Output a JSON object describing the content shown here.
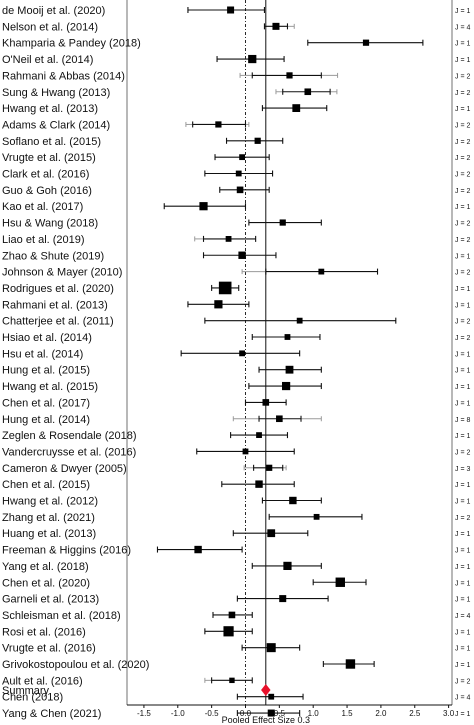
{
  "chart_data": {
    "type": "forest",
    "xlabel": "Pooled Effect Size 0.3",
    "xlim": [
      -1.75,
      3.05
    ],
    "xticks": [
      "-1.5",
      "-1.0",
      "-0.5",
      "0.0",
      "0.5",
      "1.0",
      "1.5",
      "2.0",
      "2.5",
      "3.0"
    ],
    "xtick_values": [
      -1.5,
      -1.0,
      -0.5,
      0.0,
      0.5,
      1.0,
      1.5,
      2.0,
      2.5,
      3.0
    ],
    "pooled_effect": 0.3,
    "null_line": 0.0,
    "summary": {
      "label": "Summary",
      "estimate": 0.3,
      "lower": 0.23,
      "upper": 0.37,
      "color": "#e8102a"
    },
    "studies": [
      {
        "label": "de Mooij et al. (2020)",
        "estimate": -0.22,
        "lower": -0.85,
        "upper": 0.28,
        "outer_lower": null,
        "outer_upper": null,
        "size": 1,
        "j": "J = 1"
      },
      {
        "label": "Nelson et al. (2014)",
        "estimate": 0.45,
        "lower": 0.28,
        "upper": 0.62,
        "outer_lower": null,
        "outer_upper": 0.72,
        "size": 1,
        "j": "J = 4"
      },
      {
        "label": "Khamparia & Pandey (2018)",
        "estimate": 1.78,
        "lower": 0.92,
        "upper": 2.62,
        "outer_lower": null,
        "outer_upper": null,
        "size": 0.8,
        "j": "J = 1"
      },
      {
        "label": "O'Neil et al. (2014)",
        "estimate": 0.1,
        "lower": -0.42,
        "upper": 0.57,
        "outer_lower": null,
        "outer_upper": null,
        "size": 1.3,
        "j": "J = 1"
      },
      {
        "label": "Rahmani & Abbas (2014)",
        "estimate": 0.65,
        "lower": 0.1,
        "upper": 1.12,
        "outer_lower": -0.08,
        "outer_upper": 1.36,
        "size": 0.8,
        "j": "J = 2"
      },
      {
        "label": "Sung & Hwang (2013)",
        "estimate": 0.92,
        "lower": 0.55,
        "upper": 1.25,
        "outer_lower": 0.45,
        "outer_upper": 1.35,
        "size": 0.9,
        "j": "J = 2"
      },
      {
        "label": "Hwang et al. (2013)",
        "estimate": 0.75,
        "lower": 0.25,
        "upper": 1.2,
        "outer_lower": null,
        "outer_upper": null,
        "size": 1.2,
        "j": "J = 1"
      },
      {
        "label": "Adams & Clark (2014)",
        "estimate": -0.4,
        "lower": -0.78,
        "upper": 0.0,
        "outer_lower": -0.88,
        "outer_upper": 0.05,
        "size": 0.8,
        "j": "J = 2"
      },
      {
        "label": "Soflano et al. (2015)",
        "estimate": 0.18,
        "lower": -0.28,
        "upper": 0.55,
        "outer_lower": null,
        "outer_upper": null,
        "size": 0.8,
        "j": "J = 2"
      },
      {
        "label": "Vrugte et al. (2015)",
        "estimate": -0.05,
        "lower": -0.45,
        "upper": 0.35,
        "outer_lower": null,
        "outer_upper": null,
        "size": 0.7,
        "j": "J = 2"
      },
      {
        "label": "Clark et al. (2016)",
        "estimate": -0.1,
        "lower": -0.6,
        "upper": 0.4,
        "outer_lower": null,
        "outer_upper": null,
        "size": 0.7,
        "j": "J = 2"
      },
      {
        "label": "Guo & Goh (2016)",
        "estimate": -0.08,
        "lower": -0.38,
        "upper": 0.35,
        "outer_lower": null,
        "outer_upper": null,
        "size": 0.9,
        "j": "J = 2"
      },
      {
        "label": "Kao et al. (2017)",
        "estimate": -0.62,
        "lower": -1.2,
        "upper": 0.0,
        "outer_lower": null,
        "outer_upper": null,
        "size": 1.3,
        "j": "J = 1"
      },
      {
        "label": "Hsu & Wang (2018)",
        "estimate": 0.55,
        "lower": 0.05,
        "upper": 1.12,
        "outer_lower": null,
        "outer_upper": null,
        "size": 0.8,
        "j": "J = 2"
      },
      {
        "label": "Liao et al. (2019)",
        "estimate": -0.25,
        "lower": -0.62,
        "upper": 0.15,
        "outer_lower": -0.75,
        "outer_upper": null,
        "size": 0.7,
        "j": "J = 2"
      },
      {
        "label": "Zhao & Shute (2019)",
        "estimate": -0.05,
        "lower": -0.62,
        "upper": 0.45,
        "outer_lower": null,
        "outer_upper": null,
        "size": 1.1,
        "j": "J = 1"
      },
      {
        "label": "Johnson & Mayer (2010)",
        "estimate": 1.12,
        "lower": 0.3,
        "upper": 1.95,
        "outer_lower": -0.05,
        "outer_upper": null,
        "size": 0.7,
        "j": "J = 2"
      },
      {
        "label": "Rodrigues et al. (2020)",
        "estimate": -0.3,
        "lower": -0.5,
        "upper": -0.1,
        "outer_lower": null,
        "outer_upper": null,
        "size": 2.4,
        "j": "J = 1"
      },
      {
        "label": "Rahmani et al. (2013)",
        "estimate": -0.4,
        "lower": -0.85,
        "upper": 0.05,
        "outer_lower": null,
        "outer_upper": null,
        "size": 1.3,
        "j": "J = 1"
      },
      {
        "label": "Chatterjee et al. (2011)",
        "estimate": 0.8,
        "lower": -0.6,
        "upper": 2.22,
        "outer_lower": null,
        "outer_upper": null,
        "size": 0.7,
        "j": "J = 2"
      },
      {
        "label": "Hsiao et al. (2014)",
        "estimate": 0.62,
        "lower": 0.1,
        "upper": 1.1,
        "outer_lower": null,
        "outer_upper": null,
        "size": 0.7,
        "j": "J = 2"
      },
      {
        "label": "Hsu et al. (2014)",
        "estimate": -0.05,
        "lower": -0.95,
        "upper": 0.8,
        "outer_lower": null,
        "outer_upper": null,
        "size": 0.7,
        "j": "J = 1"
      },
      {
        "label": "Hung et al. (2015)",
        "estimate": 0.65,
        "lower": 0.2,
        "upper": 1.12,
        "outer_lower": null,
        "outer_upper": null,
        "size": 1.2,
        "j": "J = 1"
      },
      {
        "label": "Hwang et al. (2015)",
        "estimate": 0.6,
        "lower": 0.05,
        "upper": 1.12,
        "outer_lower": null,
        "outer_upper": null,
        "size": 1.3,
        "j": "J = 1"
      },
      {
        "label": "Chen et al. (2017)",
        "estimate": 0.3,
        "lower": 0.0,
        "upper": 0.6,
        "outer_lower": null,
        "outer_upper": null,
        "size": 0.9,
        "j": "J = 1"
      },
      {
        "label": "Hung et al. (2014)",
        "estimate": 0.5,
        "lower": 0.2,
        "upper": 0.82,
        "outer_lower": -0.18,
        "outer_upper": 1.12,
        "size": 0.9,
        "j": "J = 8"
      },
      {
        "label": "Zeglen & Rosendale (2018)",
        "estimate": 0.2,
        "lower": -0.22,
        "upper": 0.62,
        "outer_lower": null,
        "outer_upper": null,
        "size": 0.7,
        "j": "J = 1"
      },
      {
        "label": "Vandercruysse et al. (2016)",
        "estimate": 0.0,
        "lower": -0.72,
        "upper": 0.72,
        "outer_lower": null,
        "outer_upper": null,
        "size": 0.7,
        "j": "J = 2"
      },
      {
        "label": "Cameron & Dwyer (2005)",
        "estimate": 0.35,
        "lower": 0.12,
        "upper": 0.55,
        "outer_lower": -0.02,
        "outer_upper": 0.6,
        "size": 0.8,
        "j": "J = 3"
      },
      {
        "label": "Chen et al. (2015)",
        "estimate": 0.2,
        "lower": -0.35,
        "upper": 0.72,
        "outer_lower": null,
        "outer_upper": null,
        "size": 1.1,
        "j": "J = 1"
      },
      {
        "label": "Hwang et al. (2012)",
        "estimate": 0.7,
        "lower": 0.25,
        "upper": 1.12,
        "outer_lower": null,
        "outer_upper": null,
        "size": 1.1,
        "j": "J = 1"
      },
      {
        "label": "Zhang et al. (2021)",
        "estimate": 1.05,
        "lower": 0.35,
        "upper": 1.72,
        "outer_lower": null,
        "outer_upper": null,
        "size": 0.7,
        "j": "J = 2"
      },
      {
        "label": "Huang et al. (2013)",
        "estimate": 0.38,
        "lower": -0.18,
        "upper": 0.92,
        "outer_lower": null,
        "outer_upper": null,
        "size": 1.2,
        "j": "J = 1"
      },
      {
        "label": "Freeman & Higgins (2016)",
        "estimate": -0.7,
        "lower": -1.3,
        "upper": -0.05,
        "outer_lower": null,
        "outer_upper": null,
        "size": 1.1,
        "j": "J = 1"
      },
      {
        "label": "Yang et al. (2018)",
        "estimate": 0.62,
        "lower": 0.1,
        "upper": 1.12,
        "outer_lower": null,
        "outer_upper": null,
        "size": 1.3,
        "j": "J = 1"
      },
      {
        "label": "Chen et al. (2020)",
        "estimate": 1.4,
        "lower": 1.0,
        "upper": 1.78,
        "outer_lower": null,
        "outer_upper": null,
        "size": 1.6,
        "j": "J = 1"
      },
      {
        "label": "Garneli et al. (2013)",
        "estimate": 0.55,
        "lower": -0.12,
        "upper": 1.22,
        "outer_lower": null,
        "outer_upper": null,
        "size": 1.0,
        "j": "J = 1"
      },
      {
        "label": "Schleisman et al. (2018)",
        "estimate": -0.2,
        "lower": -0.48,
        "upper": 0.1,
        "outer_lower": null,
        "outer_upper": null,
        "size": 0.9,
        "j": "J = 4"
      },
      {
        "label": "Rosi et al. (2016)",
        "estimate": -0.25,
        "lower": -0.6,
        "upper": 0.1,
        "outer_lower": null,
        "outer_upper": null,
        "size": 1.8,
        "j": "J = 1"
      },
      {
        "label": "Vrugte et al. (2016)",
        "estimate": 0.38,
        "lower": -0.05,
        "upper": 0.8,
        "outer_lower": null,
        "outer_upper": null,
        "size": 1.5,
        "j": "J = 1"
      },
      {
        "label": "Grivokostopoulou et al. (2020)",
        "estimate": 1.55,
        "lower": 1.15,
        "upper": 1.9,
        "outer_lower": null,
        "outer_upper": null,
        "size": 1.6,
        "j": "J = 1"
      },
      {
        "label": "Ault et al. (2016)",
        "estimate": -0.2,
        "lower": -0.5,
        "upper": 0.1,
        "outer_lower": -0.6,
        "outer_upper": null,
        "size": 0.6,
        "j": "J = 2"
      },
      {
        "label": "Chen (2018)",
        "estimate": 0.38,
        "lower": -0.12,
        "upper": 0.85,
        "outer_lower": null,
        "outer_upper": null,
        "size": 0.7,
        "j": "J = 4"
      },
      {
        "label": "Yang & Chen (2021)",
        "estimate": 0.38,
        "lower": -0.12,
        "upper": 0.8,
        "outer_lower": null,
        "outer_upper": null,
        "size": 1.0,
        "j": "J = 1"
      }
    ]
  }
}
